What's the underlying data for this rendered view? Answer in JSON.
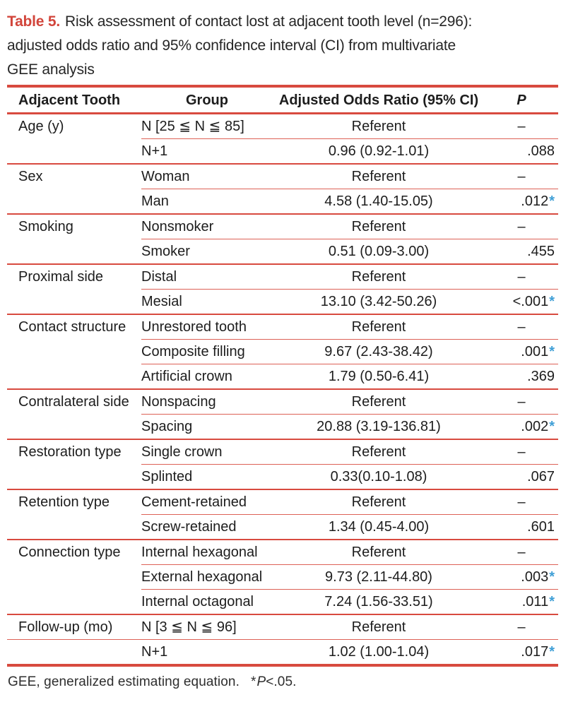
{
  "colors": {
    "rule_red": "#d84a3f",
    "title_red": "#d2453b",
    "asterisk_blue": "#3f9fd6"
  },
  "caption": {
    "label": "Table 5.",
    "line1": "Risk assessment of contact lost at adjacent tooth level (n=296):",
    "line2": "adjusted odds ratio and 95% confidence interval (CI) from multivariate",
    "line3": "GEE analysis"
  },
  "table": {
    "columns": [
      "Adjacent Tooth",
      "Group",
      "Adjusted Odds Ratio (95% CI)",
      "P"
    ],
    "na_symbol": "–",
    "sig_symbol": "*",
    "sections": [
      {
        "factor": "Age (y)",
        "full_separator": false,
        "rows": [
          {
            "group": "N [25 ≦ N ≦ 85]",
            "or": "Referent",
            "p": "–",
            "sig": false
          },
          {
            "group": "N+1",
            "or": "0.96 (0.92-1.01)",
            "p": ".088",
            "sig": false
          }
        ]
      },
      {
        "factor": "Sex",
        "full_separator": false,
        "rows": [
          {
            "group": "Woman",
            "or": "Referent",
            "p": "–",
            "sig": false
          },
          {
            "group": "Man",
            "or": "4.58 (1.40-15.05)",
            "p": ".012",
            "sig": true
          }
        ]
      },
      {
        "factor": "Smoking",
        "full_separator": false,
        "rows": [
          {
            "group": "Nonsmoker",
            "or": "Referent",
            "p": "–",
            "sig": false
          },
          {
            "group": "Smoker",
            "or": "0.51 (0.09-3.00)",
            "p": ".455",
            "sig": false
          }
        ]
      },
      {
        "factor": "Proximal side",
        "full_separator": false,
        "rows": [
          {
            "group": "Distal",
            "or": "Referent",
            "p": "–",
            "sig": false
          },
          {
            "group": "Mesial",
            "or": "13.10 (3.42-50.26)",
            "p": "<.001",
            "sig": true
          }
        ]
      },
      {
        "factor": "Contact structure",
        "full_separator": false,
        "rows": [
          {
            "group": "Unrestored tooth",
            "or": "Referent",
            "p": "–",
            "sig": false
          },
          {
            "group": "Composite filling",
            "or": "9.67 (2.43-38.42)",
            "p": ".001",
            "sig": true
          },
          {
            "group": "Artificial crown",
            "or": "1.79 (0.50-6.41)",
            "p": ".369",
            "sig": false
          }
        ]
      },
      {
        "factor": "Contralateral side",
        "full_separator": false,
        "rows": [
          {
            "group": "Nonspacing",
            "or": "Referent",
            "p": "–",
            "sig": false
          },
          {
            "group": "Spacing",
            "or": "20.88 (3.19-136.81)",
            "p": ".002",
            "sig": true
          }
        ]
      },
      {
        "factor": "Restoration type",
        "full_separator": false,
        "rows": [
          {
            "group": "Single crown",
            "or": "Referent",
            "p": "–",
            "sig": false
          },
          {
            "group": "Splinted",
            "or": "0.33(0.10-1.08)",
            "p": ".067",
            "sig": false
          }
        ]
      },
      {
        "factor": "Retention type",
        "full_separator": false,
        "rows": [
          {
            "group": "Cement-retained",
            "or": "Referent",
            "p": "–",
            "sig": false
          },
          {
            "group": "Screw-retained",
            "or": "1.34 (0.45-4.00)",
            "p": ".601",
            "sig": false
          }
        ]
      },
      {
        "factor": "Connection type",
        "full_separator": false,
        "rows": [
          {
            "group": "Internal hexagonal",
            "or": "Referent",
            "p": "–",
            "sig": false
          },
          {
            "group": "External hexagonal",
            "or": "9.73 (2.11-44.80)",
            "p": ".003",
            "sig": true
          },
          {
            "group": "Internal octagonal",
            "or": "7.24 (1.56-33.51)",
            "p": ".011",
            "sig": true
          }
        ]
      },
      {
        "factor": "Follow-up (mo)",
        "full_separator": true,
        "rows": [
          {
            "group": "N [3 ≦ N ≦ 96]",
            "or": "Referent",
            "p": "–",
            "sig": false
          },
          {
            "group": "N+1",
            "or": "1.02 (1.00-1.04)",
            "p": ".017",
            "sig": true
          }
        ]
      }
    ]
  },
  "footnote": {
    "abbr": "GEE, generalized estimating equation.",
    "star": "*",
    "p_symbol": "P",
    "threshold": "<.05."
  }
}
